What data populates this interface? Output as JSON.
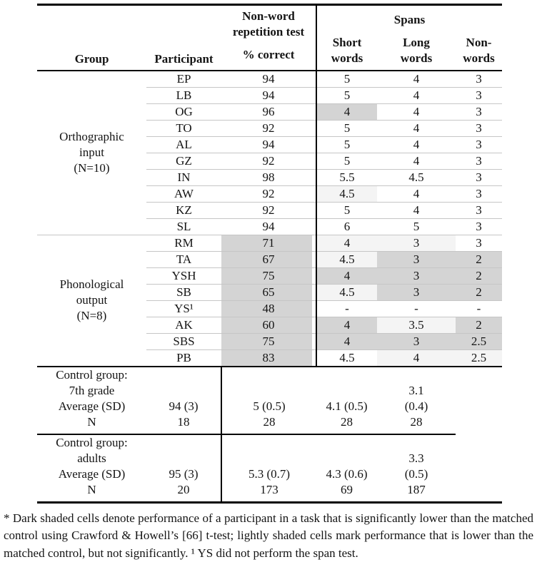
{
  "colors": {
    "dark_shade": "#d4d4d4",
    "light_shade": "#f4f4f4",
    "row_line": "#c6c6c6",
    "rule": "#000000"
  },
  "header": {
    "group": "Group",
    "participant": "Participant",
    "nwr": [
      "Non-word",
      "repetition test",
      "% correct"
    ],
    "spans": "Spans",
    "short": [
      "Short",
      "words"
    ],
    "long": [
      "Long",
      "words"
    ],
    "non": [
      "Non-",
      "words"
    ]
  },
  "groups": [
    {
      "label_lines": [
        "Orthographic",
        "input",
        "(N=10)"
      ],
      "rows": [
        {
          "id": "EP",
          "values": [
            "94",
            "5",
            "4",
            "3"
          ],
          "shades": [
            "",
            "",
            "",
            ""
          ]
        },
        {
          "id": "LB",
          "values": [
            "94",
            "5",
            "4",
            "3"
          ],
          "shades": [
            "",
            "",
            "",
            ""
          ]
        },
        {
          "id": "OG",
          "values": [
            "96",
            "4",
            "4",
            "3"
          ],
          "shades": [
            "",
            "d",
            "",
            ""
          ]
        },
        {
          "id": "TO",
          "values": [
            "92",
            "5",
            "4",
            "3"
          ],
          "shades": [
            "",
            "",
            "",
            ""
          ]
        },
        {
          "id": "AL",
          "values": [
            "94",
            "5",
            "4",
            "3"
          ],
          "shades": [
            "",
            "",
            "",
            ""
          ]
        },
        {
          "id": "GZ",
          "values": [
            "92",
            "5",
            "4",
            "3"
          ],
          "shades": [
            "",
            "",
            "",
            ""
          ]
        },
        {
          "id": "IN",
          "values": [
            "98",
            "5.5",
            "4.5",
            "3"
          ],
          "shades": [
            "",
            "",
            "",
            ""
          ]
        },
        {
          "id": "AW",
          "values": [
            "92",
            "4.5",
            "4",
            "3"
          ],
          "shades": [
            "",
            "l",
            "",
            ""
          ]
        },
        {
          "id": "KZ",
          "values": [
            "92",
            "5",
            "4",
            "3"
          ],
          "shades": [
            "",
            "",
            "",
            ""
          ]
        },
        {
          "id": "SL",
          "values": [
            "94",
            "6",
            "5",
            "3"
          ],
          "shades": [
            "",
            "",
            "",
            ""
          ]
        }
      ]
    },
    {
      "label_lines": [
        "Phonological",
        "output",
        "(N=8)"
      ],
      "rows": [
        {
          "id": "RM",
          "values": [
            "71",
            "4",
            "3",
            "3"
          ],
          "shades": [
            "d",
            "l",
            "l",
            ""
          ]
        },
        {
          "id": "TA",
          "values": [
            "67",
            "4.5",
            "3",
            "2"
          ],
          "shades": [
            "d",
            "l",
            "d",
            "d"
          ]
        },
        {
          "id": "YSH",
          "values": [
            "75",
            "4",
            "3",
            "2"
          ],
          "shades": [
            "d",
            "d",
            "d",
            "d"
          ]
        },
        {
          "id": "SB",
          "values": [
            "65",
            "4.5",
            "3",
            "2"
          ],
          "shades": [
            "d",
            "l",
            "d",
            "d"
          ]
        },
        {
          "id": "YS¹",
          "values": [
            "48",
            "-",
            "-",
            "-"
          ],
          "shades": [
            "d",
            "",
            "",
            ""
          ]
        },
        {
          "id": "AK",
          "values": [
            "60",
            "4",
            "3.5",
            "2"
          ],
          "shades": [
            "d",
            "d",
            "l",
            "d"
          ]
        },
        {
          "id": "SBS",
          "values": [
            "75",
            "4",
            "3",
            "2.5"
          ],
          "shades": [
            "d",
            "d",
            "d",
            "d"
          ]
        },
        {
          "id": "PB",
          "values": [
            "83",
            "4.5",
            "4",
            "2.5"
          ],
          "shades": [
            "d",
            "",
            "l",
            "l"
          ]
        }
      ]
    }
  ],
  "controls": [
    {
      "label": [
        "Control group:",
        "7th grade",
        "Average (SD)",
        "N"
      ],
      "pct": [
        "94 (3)",
        "18"
      ],
      "short": [
        "5 (0.5)",
        "28"
      ],
      "long": [
        "4.1 (0.5)",
        "28"
      ],
      "non": [
        "3.1",
        "(0.4)",
        "28"
      ]
    },
    {
      "label": [
        "Control group:",
        "adults",
        "Average (SD)",
        "N"
      ],
      "pct": [
        "95 (3)",
        "20"
      ],
      "short": [
        "5.3 (0.7)",
        "173"
      ],
      "long": [
        "4.3 (0.6)",
        "69"
      ],
      "non": [
        "3.3",
        "(0.5)",
        "187"
      ]
    }
  ],
  "footnote": "* Dark shaded cells denote performance of a participant in a task that is significantly lower than the matched control using Crawford & Howell’s [66] t-test; lightly shaded cells mark performance that is lower than the matched control, but not significantly. ¹ YS did not perform the span test."
}
